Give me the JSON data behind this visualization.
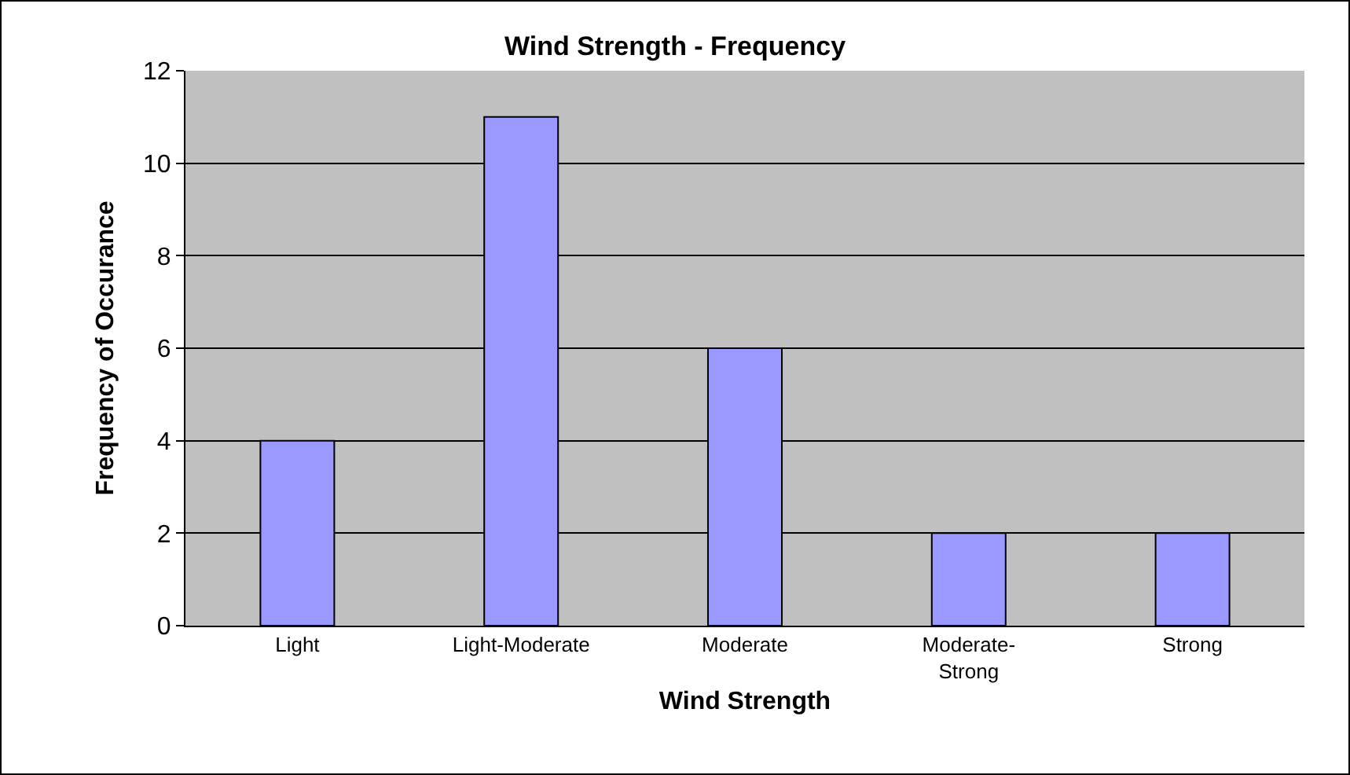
{
  "chart_data": {
    "type": "bar",
    "title": "Wind Strength - Frequency",
    "xlabel": "Wind Strength",
    "ylabel": "Frequency of Occurance",
    "categories": [
      "Light",
      "Light-Moderate",
      "Moderate",
      "Moderate-\nStrong",
      "Strong"
    ],
    "values": [
      4,
      11,
      6,
      2,
      2
    ],
    "color": "#9999ff",
    "ylim": [
      0,
      12
    ],
    "yticks": [
      0,
      2,
      4,
      6,
      8,
      10,
      12
    ],
    "grid": "y",
    "legend": false
  }
}
